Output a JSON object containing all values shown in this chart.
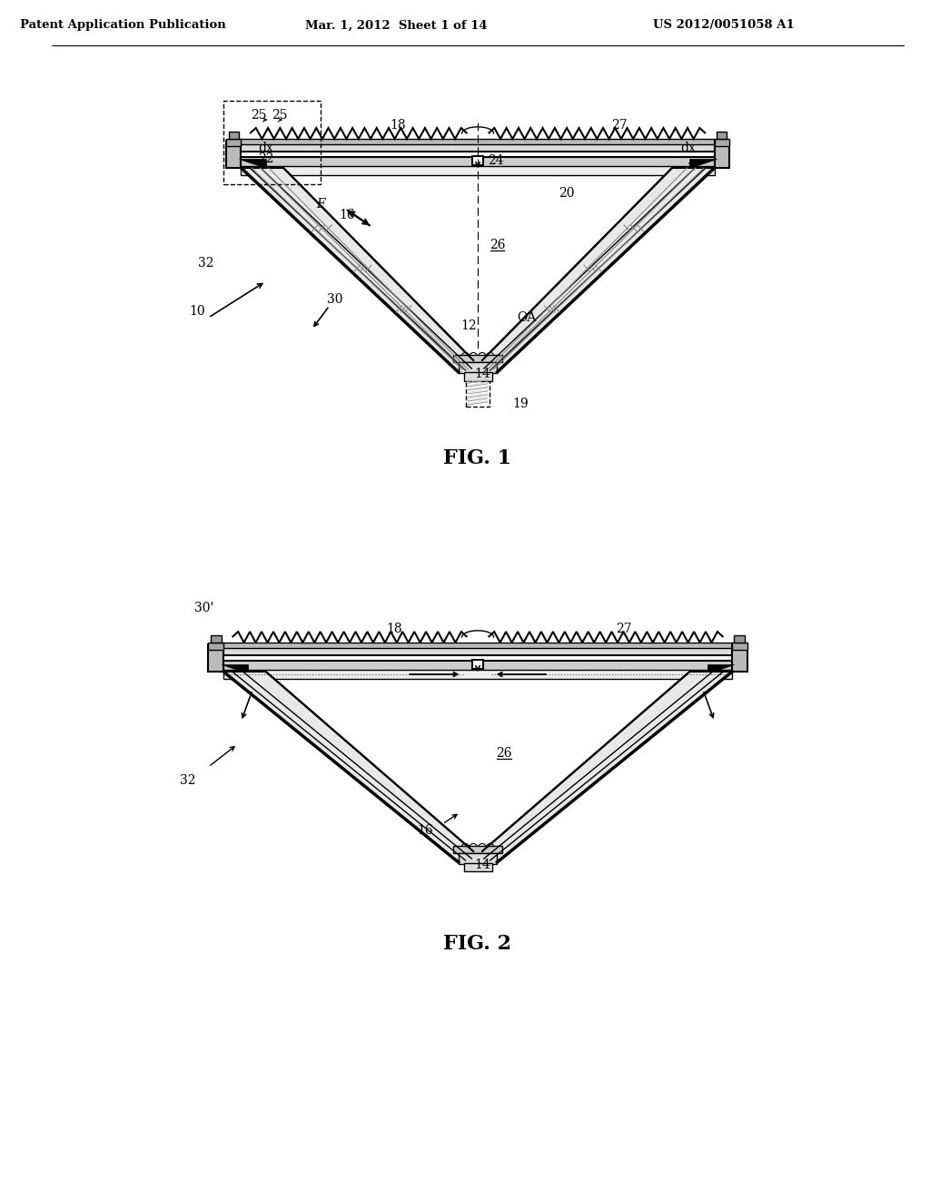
{
  "background_color": "#ffffff",
  "header_text": "Patent Application Publication",
  "header_date": "Mar. 1, 2012  Sheet 1 of 14",
  "header_patent": "US 2012/0051058 A1",
  "fig1_title": "FIG. 1",
  "fig2_title": "FIG. 2",
  "line_color": "#000000"
}
